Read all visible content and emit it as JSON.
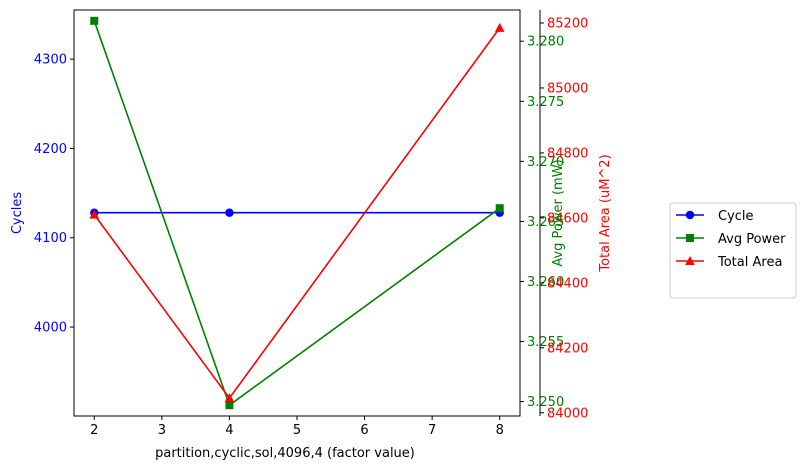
{
  "chart_data": {
    "type": "line",
    "xlabel": "partition,cyclic,sol,4096,4 (factor value)",
    "x": [
      2,
      4,
      8
    ],
    "xlim": [
      1.7,
      8.3
    ],
    "xticks": [
      "2",
      "3",
      "4",
      "5",
      "6",
      "7",
      "8"
    ],
    "axes": {
      "cycles": {
        "label": "Cycles",
        "color": "#0000ff",
        "ylim": [
          3900.4,
          4355
        ],
        "ticks": [
          "4000",
          "4100",
          "4200",
          "4300"
        ]
      },
      "power": {
        "label": "Avg Power (mW)",
        "color": "#008000",
        "ylim": [
          3.2488,
          3.2826
        ],
        "ticks": [
          "3.250",
          "3.255",
          "3.260",
          "3.265",
          "3.270",
          "3.275",
          "3.280"
        ]
      },
      "area": {
        "label": "Total Area (uM^2)",
        "color": "#ff0000",
        "ylim": [
          83990,
          85240
        ],
        "ticks": [
          "84000",
          "84200",
          "84400",
          "84600",
          "84800",
          "85000",
          "85200"
        ]
      }
    },
    "series": [
      {
        "name": "Cycle",
        "axis": "cycles",
        "color": "#0000ff",
        "marker": "circle",
        "values": [
          4128,
          4128,
          4128
        ]
      },
      {
        "name": "Avg Power",
        "axis": "power",
        "color": "#008000",
        "marker": "square",
        "values": [
          3.2817,
          3.2497,
          3.2661
        ]
      },
      {
        "name": "Total Area",
        "axis": "area",
        "color": "#ff0000",
        "marker": "triangle",
        "values": [
          84610,
          84045,
          85185
        ]
      }
    ],
    "legend_position": "right"
  }
}
